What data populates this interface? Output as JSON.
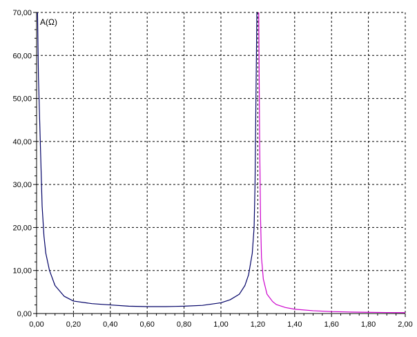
{
  "chart_data": {
    "type": "line",
    "title": "",
    "xlabel": "",
    "ylabel": "A(Ω)",
    "xlim": [
      0,
      2
    ],
    "ylim": [
      0,
      70
    ],
    "grid": true,
    "x_ticks": [
      0,
      0.2,
      0.4,
      0.6,
      0.8,
      1.0,
      1.2,
      1.4,
      1.6,
      1.8,
      2.0
    ],
    "x_tick_labels": [
      "0,00",
      "0,20",
      "0,40",
      "0,60",
      "0,80",
      "1,00",
      "1,20",
      "1,40",
      "1,60",
      "1,80",
      "2,00"
    ],
    "y_ticks": [
      0,
      10,
      20,
      30,
      40,
      50,
      60,
      70
    ],
    "y_tick_labels": [
      "0,00",
      "10,00",
      "20,00",
      "30,00",
      "40,00",
      "50,00",
      "60,00",
      "70,00"
    ],
    "series": [
      {
        "color": "#000066",
        "x": [
          0.005,
          0.01,
          0.02,
          0.03,
          0.04,
          0.05,
          0.07,
          0.1,
          0.15,
          0.2,
          0.3,
          0.4,
          0.5,
          0.6,
          0.7,
          0.8,
          0.9,
          1.0,
          1.05,
          1.1,
          1.13,
          1.15,
          1.17,
          1.18,
          1.185,
          1.19,
          1.195
        ],
        "y": [
          70,
          55,
          40,
          25,
          18,
          14,
          10,
          6.5,
          4,
          2.9,
          2.3,
          2.0,
          1.7,
          1.6,
          1.6,
          1.7,
          1.9,
          2.5,
          3.2,
          4.5,
          6.5,
          9,
          14,
          20,
          30,
          50,
          70
        ]
      },
      {
        "color": "#cc00cc",
        "x": [
          1.205,
          1.21,
          1.215,
          1.22,
          1.23,
          1.25,
          1.28,
          1.3,
          1.35,
          1.4,
          1.5,
          1.6,
          1.7,
          1.8,
          1.9,
          2.0
        ],
        "y": [
          70,
          40,
          22,
          13,
          8,
          4.5,
          2.8,
          2.1,
          1.4,
          1.0,
          0.65,
          0.45,
          0.35,
          0.28,
          0.23,
          0.2
        ]
      }
    ]
  }
}
